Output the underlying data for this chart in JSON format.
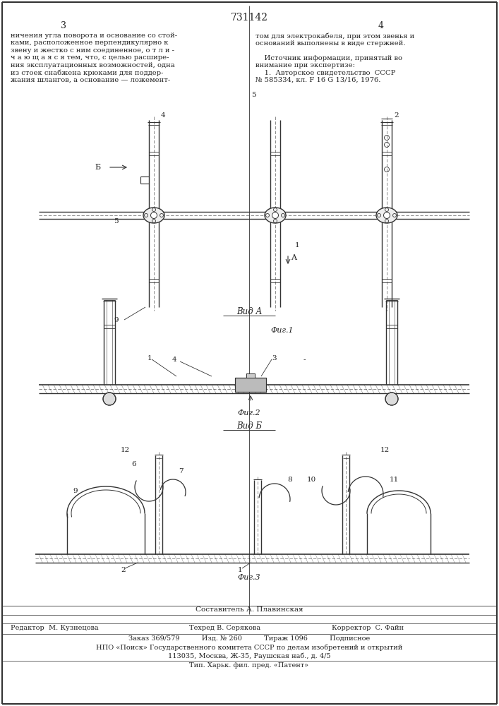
{
  "title": "731142",
  "background_color": "#ffffff",
  "line_color": "#333333",
  "text_color": "#222222",
  "fig_width": 7.07,
  "fig_height": 10.0,
  "dpi": 100,
  "left_text": "ничения угла поворота и основание со стой-\nками, расположенное перпендикулярно к\nзвену и жестко с ним соединенное, о т л и -\nч а ю щ а я с я тем, что, с целью расшире-\nния эксплуатационных возможностей, одна\nиз стоек снабжена крюками для поддер-\nжания шлангов, а основание — ложемент-",
  "right_text": "том для электрокабеля, при этом звенья и\nоснований выполнены в виде стержней.\n\n    Источник информации, принятый во\nвнимание при экспертизе:\n    1.  Авторское свидетельство  СССР\n№ 585334, кл. F 16 G 13/16, 1976.",
  "footer_composer": "Составитель А. Плавинская",
  "footer_editor": "Редактор  М. Кузнецова",
  "footer_tech": "Техред В. Серякова",
  "footer_corrector": "Корректор  С. Файн",
  "footer_order": "Заказ 369/579          Изд. № 260          Тираж 1096          Подписное",
  "footer_npo": "НПО «Поиск» Государственного комитета СССР по делам изобретений и открытий",
  "footer_addr": "113035, Москва, Ж-35, Раушская наб., д. 4/5",
  "footer_print": "Тип. Харьк. фил. пред. «Патент»"
}
